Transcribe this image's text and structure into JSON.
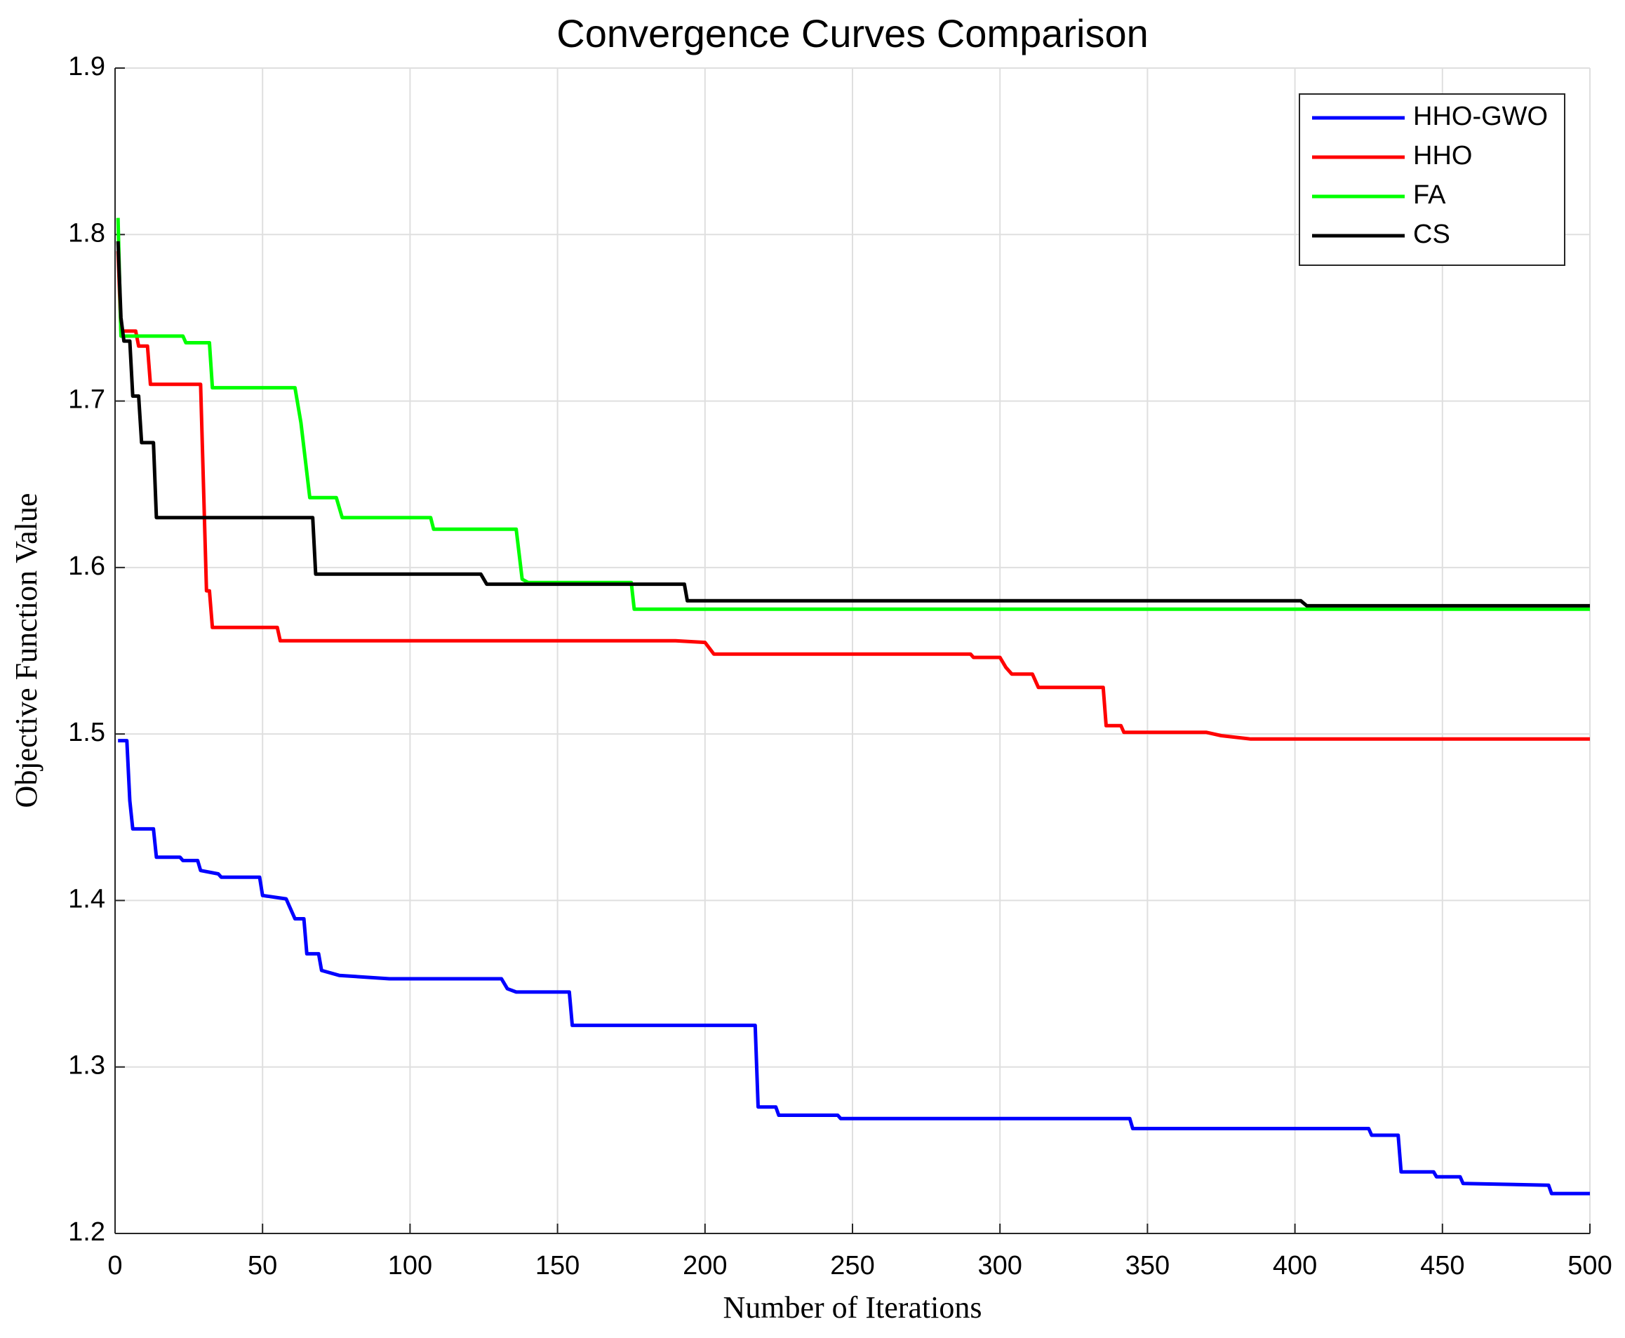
{
  "chart_data": {
    "type": "line",
    "title": "Convergence Curves Comparison",
    "x_label": "Number of Iterations",
    "y_label": "Objective Function Value",
    "xlim": [
      0,
      500
    ],
    "ylim": [
      1.2,
      1.9
    ],
    "xticks": [
      0,
      50,
      100,
      150,
      200,
      250,
      300,
      350,
      400,
      450,
      500
    ],
    "yticks": [
      {
        "value": 1.2,
        "label": "1.2"
      },
      {
        "value": 1.3,
        "label": "1.3"
      },
      {
        "value": 1.4,
        "label": "1.4"
      },
      {
        "value": 1.5,
        "label": "1.5"
      },
      {
        "value": 1.6,
        "label": "1.6"
      },
      {
        "value": 1.7,
        "label": "1.7"
      },
      {
        "value": 1.8,
        "label": "1.8"
      },
      {
        "value": 1.9,
        "label": "1.9"
      }
    ],
    "grid": true,
    "legend_position": "upper right",
    "series": [
      {
        "name": "HHO-GWO",
        "color": "#0000ff",
        "x": [
          1,
          4,
          5,
          6,
          13,
          14,
          22,
          23,
          28,
          29,
          35,
          36,
          49,
          50,
          58,
          61,
          64,
          65,
          69,
          70,
          76,
          93,
          131,
          133,
          136,
          154,
          155,
          217,
          218,
          224,
          225,
          245,
          246,
          344,
          345,
          425,
          426,
          435,
          436,
          447,
          448,
          456,
          457,
          486,
          487,
          500
        ],
        "values": [
          1.496,
          1.496,
          1.46,
          1.443,
          1.443,
          1.426,
          1.426,
          1.424,
          1.424,
          1.418,
          1.416,
          1.414,
          1.414,
          1.403,
          1.401,
          1.389,
          1.389,
          1.368,
          1.368,
          1.358,
          1.355,
          1.353,
          1.353,
          1.347,
          1.345,
          1.345,
          1.325,
          1.325,
          1.276,
          1.276,
          1.271,
          1.271,
          1.269,
          1.269,
          1.263,
          1.263,
          1.259,
          1.259,
          1.237,
          1.237,
          1.234,
          1.234,
          1.23,
          1.229,
          1.224,
          1.224
        ]
      },
      {
        "name": "HHO",
        "color": "#ff0000",
        "x": [
          1,
          2,
          7,
          8,
          11,
          12,
          29,
          31,
          32,
          33,
          55,
          56,
          190,
          200,
          203,
          290,
          291,
          300,
          302,
          304,
          311,
          313,
          335,
          336,
          341,
          342,
          370,
          375,
          385,
          500
        ],
        "values": [
          1.79,
          1.742,
          1.742,
          1.733,
          1.733,
          1.71,
          1.71,
          1.586,
          1.586,
          1.564,
          1.564,
          1.556,
          1.556,
          1.555,
          1.548,
          1.548,
          1.546,
          1.546,
          1.54,
          1.536,
          1.536,
          1.528,
          1.528,
          1.505,
          1.505,
          1.501,
          1.501,
          1.499,
          1.497,
          1.497
        ]
      },
      {
        "name": "FA",
        "color": "#00ff00",
        "x": [
          1,
          2,
          23,
          24,
          32,
          33,
          61,
          63,
          66,
          75,
          77,
          107,
          108,
          136,
          138,
          140,
          175,
          176,
          500
        ],
        "values": [
          1.81,
          1.739,
          1.739,
          1.735,
          1.735,
          1.708,
          1.708,
          1.687,
          1.642,
          1.642,
          1.63,
          1.63,
          1.623,
          1.623,
          1.593,
          1.591,
          1.591,
          1.575,
          1.575
        ]
      },
      {
        "name": "CS",
        "color": "#000000",
        "x": [
          1,
          2,
          3,
          5,
          6,
          8,
          9,
          13,
          14,
          67,
          68,
          124,
          126,
          193,
          194,
          402,
          404,
          500
        ],
        "values": [
          1.796,
          1.75,
          1.736,
          1.736,
          1.703,
          1.703,
          1.675,
          1.675,
          1.63,
          1.63,
          1.596,
          1.596,
          1.59,
          1.59,
          1.58,
          1.58,
          1.577,
          1.577
        ]
      }
    ]
  }
}
